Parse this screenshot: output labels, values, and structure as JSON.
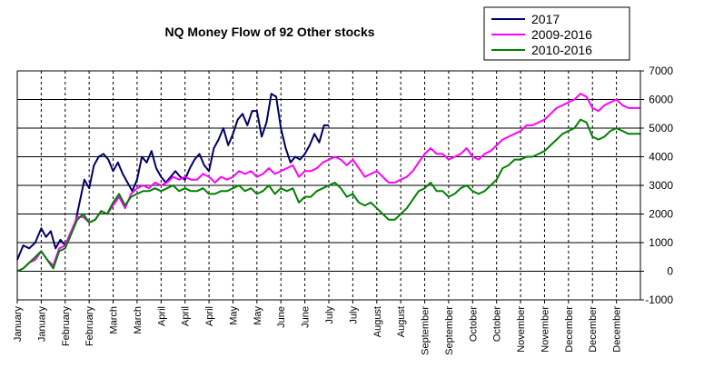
{
  "chart_data": {
    "type": "line",
    "title": "NQ Money Flow of 92 Other stocks",
    "xlabel": "",
    "ylabel": "",
    "ylim": [
      -1000,
      7000
    ],
    "yticks": [
      -1000,
      0,
      1000,
      2000,
      3000,
      4000,
      5000,
      6000,
      7000
    ],
    "y_axis_side": "right",
    "grid": true,
    "legend_placement": "top-right",
    "x_range": [
      0,
      26
    ],
    "x_tick_labels": [
      "January",
      "January",
      "February",
      "February",
      "March",
      "March",
      "April",
      "April",
      "April",
      "May",
      "May",
      "June",
      "June",
      "July",
      "July",
      "August",
      "August",
      "September",
      "September",
      "October",
      "October",
      "November",
      "November",
      "December",
      "December",
      "December"
    ],
    "series": [
      {
        "name": "2017",
        "color": "#000066",
        "x": [
          0,
          0.25,
          0.5,
          0.75,
          1.0,
          1.2,
          1.4,
          1.6,
          1.8,
          2.0,
          2.2,
          2.4,
          2.6,
          2.8,
          3.0,
          3.2,
          3.4,
          3.6,
          3.8,
          4.0,
          4.2,
          4.4,
          4.6,
          4.8,
          5.0,
          5.2,
          5.4,
          5.6,
          5.8,
          6.0,
          6.2,
          6.4,
          6.6,
          6.8,
          7.0,
          7.2,
          7.4,
          7.6,
          7.8,
          8.0,
          8.2,
          8.4,
          8.6,
          8.8,
          9.0,
          9.2,
          9.4,
          9.6,
          9.8,
          10.0,
          10.2,
          10.4,
          10.6,
          10.8,
          11.0,
          11.2,
          11.4,
          11.6,
          11.8,
          12.0,
          12.2,
          12.4,
          12.6,
          12.8,
          13.0,
          13.2,
          13.4,
          13.6
        ],
        "values": [
          400,
          900,
          800,
          1000,
          1500,
          1200,
          1400,
          800,
          1100,
          900,
          1300,
          1600,
          2400,
          3200,
          2900,
          3700,
          4000,
          4100,
          3900,
          3500,
          3800,
          3400,
          3100,
          2800,
          3200,
          4000,
          3800,
          4200,
          3600,
          3300,
          3100,
          3300,
          3500,
          3300,
          3200,
          3600,
          3900,
          4100,
          3700,
          3500,
          4300,
          4600,
          5000,
          4400,
          4800,
          5300,
          5500,
          5100,
          5600,
          5600,
          4700,
          5200,
          6200,
          6100,
          5000,
          4300,
          3800,
          4000,
          3900,
          4100,
          4400,
          4800,
          4500,
          5100,
          5100,
          null,
          null,
          null
        ],
        "note": null
      },
      {
        "name": "2009-2016",
        "color": "#ff00ff",
        "x": [
          0,
          0.25,
          0.5,
          0.75,
          1.0,
          1.25,
          1.5,
          1.75,
          2.0,
          2.25,
          2.5,
          2.75,
          3.0,
          3.25,
          3.5,
          3.75,
          4.0,
          4.25,
          4.5,
          4.75,
          5.0,
          5.25,
          5.5,
          5.75,
          6.0,
          6.25,
          6.5,
          6.75,
          7.0,
          7.25,
          7.5,
          7.75,
          8.0,
          8.25,
          8.5,
          8.75,
          9.0,
          9.25,
          9.5,
          9.75,
          10.0,
          10.25,
          10.5,
          10.75,
          11.0,
          11.25,
          11.5,
          11.75,
          12.0,
          12.25,
          12.5,
          12.75,
          13.0,
          13.25,
          13.5,
          13.75,
          14.0,
          14.25,
          14.5,
          14.75,
          15.0,
          15.25,
          15.5,
          15.75,
          16.0,
          16.25,
          16.5,
          16.75,
          17.0,
          17.25,
          17.5,
          17.75,
          18.0,
          18.25,
          18.5,
          18.75,
          19.0,
          19.25,
          19.5,
          19.75,
          20.0,
          20.25,
          20.5,
          20.75,
          21.0,
          21.25,
          21.5,
          21.75,
          22.0,
          22.25,
          22.5,
          22.75,
          23.0,
          23.25,
          23.5,
          23.75,
          24.0,
          24.25,
          24.5,
          24.75,
          25.0,
          25.25,
          25.5,
          25.75,
          26.0
        ],
        "values": [
          0,
          100,
          300,
          400,
          700,
          400,
          200,
          800,
          900,
          1400,
          1900,
          1900,
          1700,
          1800,
          2100,
          2000,
          2300,
          2600,
          2200,
          2700,
          2900,
          3000,
          2900,
          3100,
          3000,
          3100,
          3300,
          3200,
          3300,
          3200,
          3200,
          3400,
          3300,
          3100,
          3300,
          3200,
          3300,
          3500,
          3400,
          3500,
          3300,
          3400,
          3600,
          3400,
          3500,
          3600,
          3700,
          3300,
          3500,
          3500,
          3600,
          3800,
          3900,
          4000,
          3900,
          3700,
          3900,
          3600,
          3300,
          3400,
          3500,
          3300,
          3100,
          3100,
          3200,
          3300,
          3500,
          3800,
          4100,
          4300,
          4100,
          4100,
          3900,
          4000,
          4100,
          4300,
          4000,
          3900,
          4100,
          4200,
          4400,
          4600,
          4700,
          4800,
          4900,
          5100,
          5100,
          5200,
          5300,
          5500,
          5700,
          5800,
          5900,
          6000,
          6200,
          6100,
          5700,
          5600,
          5800,
          5900,
          6000,
          5800,
          5700,
          5700,
          5700
        ],
        "note": null
      },
      {
        "name": "2010-2016",
        "color": "#008000",
        "x": [
          0,
          0.25,
          0.5,
          0.75,
          1.0,
          1.25,
          1.5,
          1.75,
          2.0,
          2.25,
          2.5,
          2.75,
          3.0,
          3.25,
          3.5,
          3.75,
          4.0,
          4.25,
          4.5,
          4.75,
          5.0,
          5.25,
          5.5,
          5.75,
          6.0,
          6.25,
          6.5,
          6.75,
          7.0,
          7.25,
          7.5,
          7.75,
          8.0,
          8.25,
          8.5,
          8.75,
          9.0,
          9.25,
          9.5,
          9.75,
          10.0,
          10.25,
          10.5,
          10.75,
          11.0,
          11.25,
          11.5,
          11.75,
          12.0,
          12.25,
          12.5,
          12.75,
          13.0,
          13.25,
          13.5,
          13.75,
          14.0,
          14.25,
          14.5,
          14.75,
          15.0,
          15.25,
          15.5,
          15.75,
          16.0,
          16.25,
          16.5,
          16.75,
          17.0,
          17.25,
          17.5,
          17.75,
          18.0,
          18.25,
          18.5,
          18.75,
          19.0,
          19.25,
          19.5,
          19.75,
          20.0,
          20.25,
          20.5,
          20.75,
          21.0,
          21.25,
          21.5,
          21.75,
          22.0,
          22.25,
          22.5,
          22.75,
          23.0,
          23.25,
          23.5,
          23.75,
          24.0,
          24.25,
          24.5,
          24.75,
          25.0,
          25.25,
          25.5,
          25.75,
          26.0
        ],
        "values": [
          0,
          100,
          300,
          500,
          700,
          400,
          100,
          700,
          800,
          1300,
          1800,
          2000,
          1700,
          1800,
          2100,
          2000,
          2400,
          2700,
          2300,
          2600,
          2700,
          2800,
          2800,
          2900,
          2800,
          2900,
          3000,
          2800,
          2900,
          2800,
          2800,
          2900,
          2700,
          2700,
          2800,
          2800,
          2900,
          3000,
          2800,
          2900,
          2700,
          2800,
          3000,
          2700,
          2900,
          2800,
          2900,
          2400,
          2600,
          2600,
          2800,
          2900,
          3000,
          3100,
          2900,
          2600,
          2700,
          2400,
          2300,
          2400,
          2200,
          2000,
          1800,
          1800,
          2000,
          2200,
          2500,
          2800,
          2900,
          3100,
          2800,
          2800,
          2600,
          2700,
          2900,
          3000,
          2800,
          2700,
          2800,
          3000,
          3200,
          3600,
          3700,
          3900,
          3900,
          4000,
          4000,
          4100,
          4200,
          4400,
          4600,
          4800,
          4900,
          5000,
          5300,
          5200,
          4700,
          4600,
          4700,
          4900,
          5000,
          4900,
          4800,
          4800,
          4800
        ],
        "note": null
      }
    ]
  }
}
